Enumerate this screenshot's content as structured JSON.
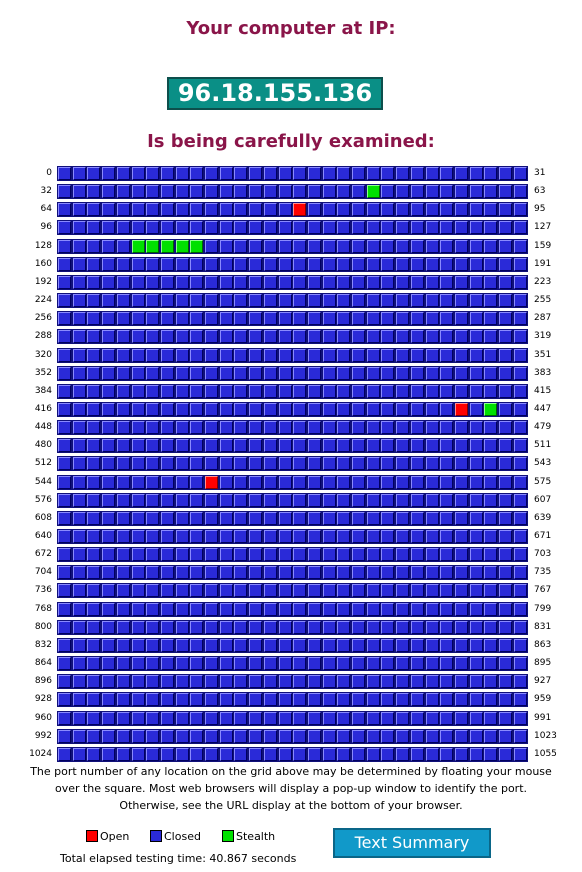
{
  "header": {
    "line1": "Your computer at IP:",
    "ip": "96.18.155.136",
    "line2": "Is being carefully examined:"
  },
  "grid": {
    "rows": 33,
    "cols": 32,
    "row_labels_left": [
      "0",
      "32",
      "64",
      "96",
      "128",
      "160",
      "192",
      "224",
      "256",
      "288",
      "320",
      "352",
      "384",
      "416",
      "448",
      "480",
      "512",
      "544",
      "576",
      "608",
      "640",
      "672",
      "704",
      "736",
      "768",
      "800",
      "832",
      "864",
      "896",
      "928",
      "960",
      "992",
      "1024"
    ],
    "row_labels_right": [
      "31",
      "63",
      "95",
      "127",
      "159",
      "191",
      "223",
      "255",
      "287",
      "319",
      "351",
      "383",
      "415",
      "447",
      "479",
      "511",
      "543",
      "575",
      "607",
      "639",
      "671",
      "703",
      "735",
      "767",
      "799",
      "831",
      "863",
      "895",
      "927",
      "959",
      "991",
      "1023",
      "1055"
    ],
    "default_status": "closed",
    "open_ports": [
      80,
      443,
      554
    ],
    "stealth_ports": [
      53,
      133,
      134,
      135,
      136,
      137,
      445
    ]
  },
  "note": "The port number of any location on the grid above may be determined by floating your mouse over the square. Most web browsers will display a pop-up window to identify the port. Otherwise, see the URL display at the bottom of your browser.",
  "legend": {
    "open": {
      "label": "Open",
      "color": "#ff0000"
    },
    "closed": {
      "label": "Closed",
      "color": "#2a2ad8"
    },
    "stealth": {
      "label": "Stealth",
      "color": "#00e000"
    }
  },
  "elapsed": "Total elapsed testing time: 40.867 seconds",
  "summary_button": "Text Summary",
  "colors": {
    "title": "#8a1549",
    "ip_box": "#0a8f86",
    "button": "#1199c9"
  }
}
